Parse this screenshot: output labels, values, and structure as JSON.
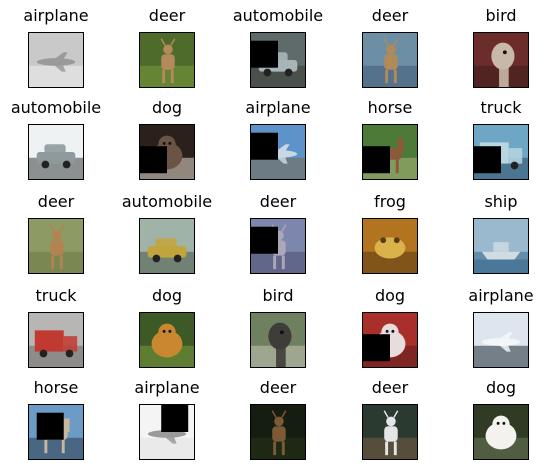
{
  "grid": {
    "rows": 5,
    "cols": 5,
    "cells": [
      {
        "label": "airplane",
        "icon": "airplane-photo",
        "colors": [
          "#c9c9c9",
          "#9a9a9a",
          "#eeeeee"
        ],
        "masked": false
      },
      {
        "label": "deer",
        "icon": "deer-photo",
        "colors": [
          "#4f6b2c",
          "#b48a5c",
          "#7a9a3c"
        ],
        "masked": false
      },
      {
        "label": "automobile",
        "icon": "automobile-photo",
        "colors": [
          "#5e6b6a",
          "#a7b5b9",
          "#3a3a33"
        ],
        "masked": true,
        "mask": "top-left"
      },
      {
        "label": "deer",
        "icon": "deer-photo",
        "colors": [
          "#6d8fa6",
          "#b08a59",
          "#3f5b74"
        ],
        "masked": false
      },
      {
        "label": "bird",
        "icon": "bird-photo",
        "colors": [
          "#6b2c2a",
          "#c9b7a8",
          "#3d1f1c"
        ],
        "masked": false
      },
      {
        "label": "automobile",
        "icon": "automobile-photo",
        "colors": [
          "#eef2f2",
          "#8f9a9c",
          "#3b3f42"
        ],
        "masked": false
      },
      {
        "label": "dog",
        "icon": "dog-photo",
        "colors": [
          "#2b201b",
          "#6b5446",
          "#e7dcd0"
        ],
        "masked": true,
        "mask": "bottom-left"
      },
      {
        "label": "airplane",
        "icon": "airplane-photo",
        "colors": [
          "#5c93c9",
          "#c7d7e3",
          "#7c6a4b"
        ],
        "masked": true,
        "mask": "top-left"
      },
      {
        "label": "horse",
        "icon": "horse-photo",
        "colors": [
          "#4e7a37",
          "#8c5a3a",
          "#a9b67b"
        ],
        "masked": true,
        "mask": "bottom-left"
      },
      {
        "label": "truck",
        "icon": "truck-photo",
        "colors": [
          "#6ea6c5",
          "#b8d5e0",
          "#2f4f66"
        ],
        "masked": true,
        "mask": "bottom-left"
      },
      {
        "label": "deer",
        "icon": "deer-photo",
        "colors": [
          "#8e9a63",
          "#b1834f",
          "#6a7846"
        ],
        "masked": false
      },
      {
        "label": "automobile",
        "icon": "automobile-photo",
        "colors": [
          "#9fb3a8",
          "#c2a43f",
          "#4a5a48"
        ],
        "masked": false
      },
      {
        "label": "deer",
        "icon": "deer-photo",
        "colors": [
          "#7d86ad",
          "#a9a7b9",
          "#4b4e70"
        ],
        "masked": true,
        "mask": "top-left"
      },
      {
        "label": "frog",
        "icon": "frog-photo",
        "colors": [
          "#b2741f",
          "#d9b24a",
          "#5a3a14"
        ],
        "masked": false
      },
      {
        "label": "ship",
        "icon": "ship-photo",
        "colors": [
          "#9ab9cf",
          "#cfdde3",
          "#3b6a8c"
        ],
        "masked": false
      },
      {
        "label": "truck",
        "icon": "truck-photo",
        "colors": [
          "#b8b6b4",
          "#c13a31",
          "#6a6a6a"
        ],
        "masked": false
      },
      {
        "label": "dog",
        "icon": "dog-photo",
        "colors": [
          "#3d5a26",
          "#c9882f",
          "#7b9b3d"
        ],
        "masked": false
      },
      {
        "label": "bird",
        "icon": "bird-photo",
        "colors": [
          "#6e8060",
          "#3f3d3a",
          "#c8c4b8"
        ],
        "masked": false
      },
      {
        "label": "dog",
        "icon": "dog-photo",
        "colors": [
          "#a82f2a",
          "#e8dcdc",
          "#5c1e1b"
        ],
        "masked": true,
        "mask": "bottom-left"
      },
      {
        "label": "airplane",
        "icon": "airplane-photo",
        "colors": [
          "#dde6ee",
          "#f3f6f9",
          "#1d2a33"
        ],
        "masked": false
      },
      {
        "label": "horse",
        "icon": "horse-photo",
        "colors": [
          "#6c9cc6",
          "#c8b79c",
          "#2d3a4a"
        ],
        "masked": true,
        "mask": "center"
      },
      {
        "label": "airplane",
        "icon": "airplane-photo",
        "colors": [
          "#f4f4f4",
          "#9a9a9a",
          "#e2e2e2"
        ],
        "masked": true,
        "mask": "top-right"
      },
      {
        "label": "deer",
        "icon": "deer-photo",
        "colors": [
          "#141d0f",
          "#7b5a35",
          "#26331b"
        ],
        "masked": false
      },
      {
        "label": "deer",
        "icon": "deer-photo",
        "colors": [
          "#2a3a30",
          "#e5e5e7",
          "#7a5f45"
        ],
        "masked": false
      },
      {
        "label": "dog",
        "icon": "dog-photo",
        "colors": [
          "#2f3b24",
          "#f4f2ef",
          "#6d7a5a"
        ],
        "masked": false
      }
    ]
  }
}
